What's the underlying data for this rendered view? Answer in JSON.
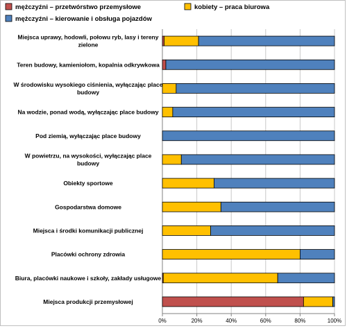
{
  "chart_data": {
    "type": "bar",
    "orientation": "horizontal",
    "stacked": "percent",
    "categories": [
      [
        "Miejsca uprawy, hodowli, połowu ryb, lasy i tereny",
        "zielone"
      ],
      [
        "Teren budowy, kamieniołom, kopalnia odkrywkowa"
      ],
      [
        "W środowisku wysokiego ciśnienia, wyłączając place",
        "budowy"
      ],
      [
        "Na wodzie, ponad wodą, wyłączając place budowy"
      ],
      [
        "Pod ziemią, wyłączając place budowy"
      ],
      [
        "W powietrzu, na wysokości, wyłączając place",
        "budowy"
      ],
      [
        "Obiekty sportowe"
      ],
      [
        "Gospodarstwa domowe"
      ],
      [
        "Miejsca i środki komunikacji publicznej"
      ],
      [
        "Placówki ochrony zdrowia"
      ],
      [
        "Biura, placówki naukowe i szkoły, zakłady usługowe"
      ],
      [
        "Miejsca produkcji przemysłowej"
      ]
    ],
    "series": [
      {
        "name": "mężczyźni – przetwórstwo przemysłowe",
        "color": "#c0504d",
        "values": [
          1,
          2,
          0,
          0,
          0,
          0,
          0,
          0,
          0,
          0,
          0.5,
          82
        ]
      },
      {
        "name": "kobiety – praca biurowa",
        "color": "#ffc000",
        "values": [
          20,
          0,
          8,
          6,
          0,
          11,
          30,
          34,
          28,
          80,
          66.5,
          17
        ]
      },
      {
        "name": "mężczyźni – kierowanie i obsługa pojazdów",
        "color": "#4f81bd",
        "values": [
          79,
          98,
          92,
          94,
          100,
          89,
          70,
          66,
          72,
          20,
          33,
          1
        ]
      }
    ],
    "xlim": [
      0,
      100
    ],
    "xticks": [
      "0%",
      "20%",
      "40%",
      "60%",
      "80%",
      "100%"
    ],
    "grid": true,
    "legend_position": "top"
  }
}
